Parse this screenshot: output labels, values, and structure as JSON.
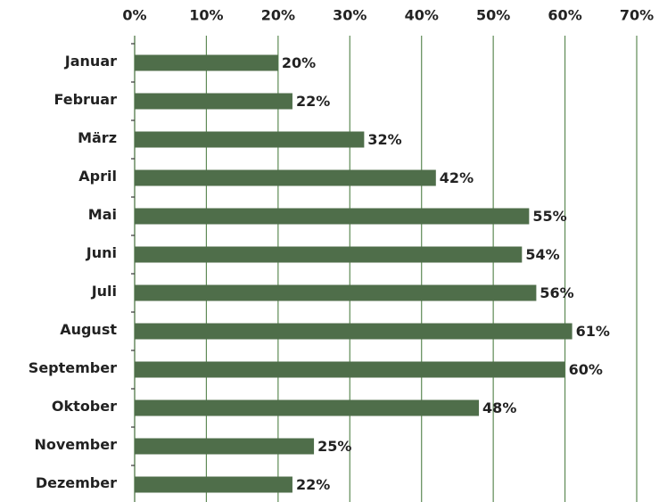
{
  "chart_data": {
    "type": "bar",
    "orientation": "horizontal",
    "categories": [
      "Januar",
      "Februar",
      "März",
      "April",
      "Mai",
      "Juni",
      "Juli",
      "August",
      "September",
      "Oktober",
      "November",
      "Dezember"
    ],
    "values": [
      20,
      22,
      32,
      42,
      55,
      54,
      56,
      61,
      60,
      48,
      25,
      22
    ],
    "value_labels": [
      "20%",
      "22%",
      "32%",
      "42%",
      "55%",
      "54%",
      "56%",
      "61%",
      "60%",
      "48%",
      "25%",
      "22%"
    ],
    "color": "#4f6e4a",
    "xlim": [
      0,
      70
    ],
    "xticks": [
      {
        "value": 0,
        "label": "0%"
      },
      {
        "value": 10,
        "label": "10%"
      },
      {
        "value": 20,
        "label": "20%"
      },
      {
        "value": 30,
        "label": "30%"
      },
      {
        "value": 40,
        "label": "40%"
      },
      {
        "value": 50,
        "label": "50%"
      },
      {
        "value": 60,
        "label": "60%"
      },
      {
        "value": 70,
        "label": "70%"
      }
    ],
    "grid": true
  }
}
